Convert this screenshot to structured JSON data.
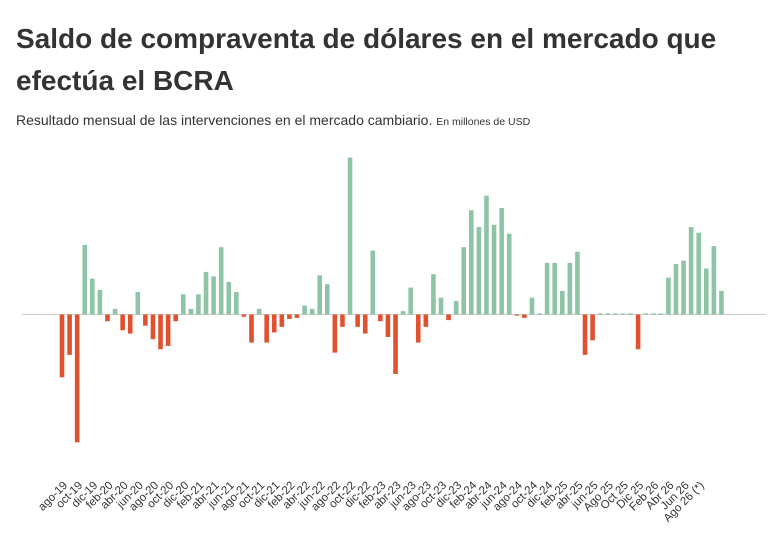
{
  "title": "Saldo de compraventa de dólares en el mercado que efectúa el BCRA",
  "subtitle": "Resultado mensual de las intervenciones en el mercado cambiario.",
  "unit_note": "En millones de USD",
  "colors": {
    "positive": "#8dc4a6",
    "negative": "#e0512f",
    "zero_line": "#cccccc",
    "text": "#333333"
  },
  "chart_data": {
    "type": "bar",
    "ylim": [
      -5700,
      7000
    ],
    "grid": false,
    "legend": "none",
    "tick_labels": [
      "ago-19",
      "oct-19",
      "dic-19",
      "feb-20",
      "abr-20",
      "jun-20",
      "ago-20",
      "oct-20",
      "dic-20",
      "feb-21",
      "abr-21",
      "jun-21",
      "ago-21",
      "oct-21",
      "dic-21",
      "feb-22",
      "abr-22",
      "jun-22",
      "ago-22",
      "oct-22",
      "dic-22",
      "feb-23",
      "abr-23",
      "jun-23",
      "ago-23",
      "oct-23",
      "dic-23",
      "feb-24",
      "abr-24",
      "jun-24",
      "ago-24",
      "oct-24",
      "dic-24",
      "feb-25",
      "abr-25",
      "jun-25",
      "Ago 25",
      "Oct 25",
      "Dic 25",
      "Feb 26",
      "Abr 26",
      "Jun 26",
      "Ago 26 (*)"
    ],
    "values": [
      -2800,
      -1800,
      -5700,
      3100,
      1600,
      1100,
      -300,
      250,
      -700,
      -850,
      1000,
      -500,
      -1100,
      -1550,
      -1400,
      -300,
      900,
      250,
      900,
      1900,
      1700,
      3000,
      1450,
      1000,
      -100,
      -1250,
      250,
      -1250,
      -800,
      -550,
      -200,
      -150,
      400,
      250,
      1750,
      1350,
      -1700,
      -550,
      7000,
      -550,
      -850,
      2850,
      -300,
      -1000,
      -2650,
      150,
      1200,
      -1250,
      -550,
      1800,
      750,
      -250,
      600,
      3000,
      4650,
      3900,
      5300,
      4000,
      4750,
      3600,
      -50,
      -150,
      750,
      50,
      2300,
      2300,
      1050,
      2300,
      2800,
      -1800,
      -1150,
      50,
      50,
      50,
      50,
      50,
      -1550,
      50,
      50,
      50,
      1650,
      2250,
      2400,
      3900,
      3650,
      2050,
      3050,
      1050
    ]
  }
}
